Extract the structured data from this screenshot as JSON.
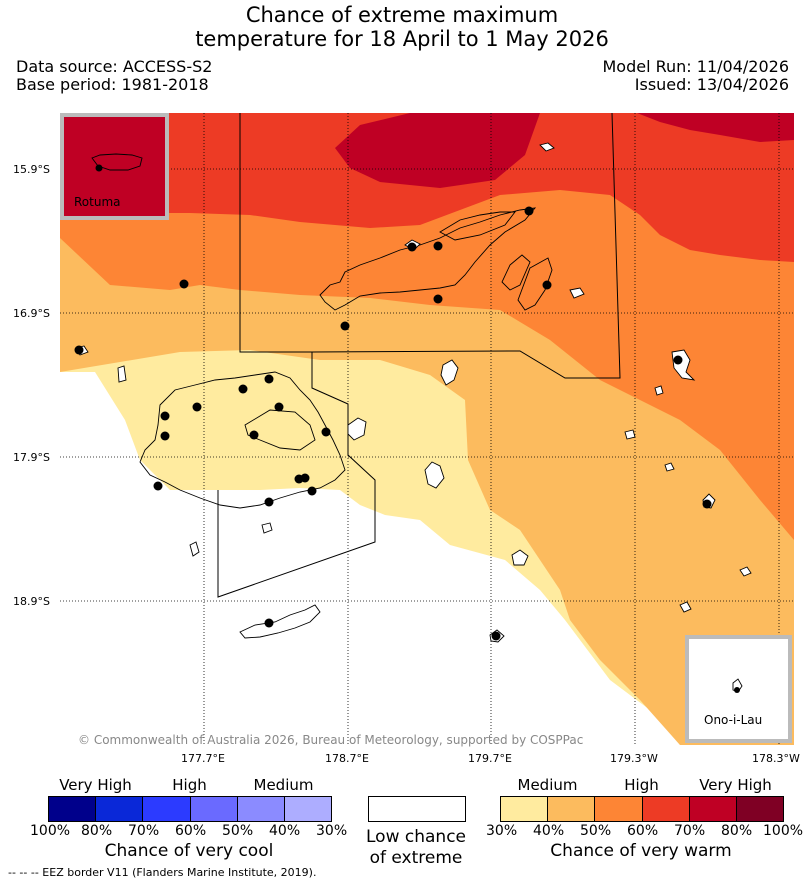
{
  "title": {
    "line1": "Chance of extreme maximum",
    "line2": "temperature for 18 April to 1 May 2026"
  },
  "info": {
    "data_source": "Data source: ACCESS-S2",
    "base_period": "Base period: 1981-2018",
    "model_run": "Model Run: 11/04/2026",
    "issued": "Issued: 13/04/2026"
  },
  "map": {
    "lat_labels": [
      "15.9°S",
      "16.9°S",
      "17.9°S",
      "18.9°S"
    ],
    "lon_labels": [
      "177.7°E",
      "178.7°E",
      "179.7°E",
      "179.3°W",
      "178.3°W"
    ],
    "inset_rotuma": "Rotuma",
    "inset_ono": "Ono-i-Lau",
    "copyright": "© Commonwealth of Australia 2026, Bureau of Meteorology, supported by COSPPac"
  },
  "legend": {
    "cool": {
      "headers": [
        "Very High",
        "High",
        "Medium"
      ],
      "ticks": [
        "100%",
        "80%",
        "70%",
        "60%",
        "50%",
        "40%",
        "30%"
      ],
      "caption": "Chance of very cool",
      "colors": [
        "#00008b",
        "#0a28d8",
        "#2c3bff",
        "#6a6aff",
        "#8b8bff",
        "#adadff"
      ]
    },
    "low": {
      "caption_line1": "Low chance",
      "caption_line2": "of extreme",
      "color": "#ffffff"
    },
    "warm": {
      "headers": [
        "Medium",
        "High",
        "Very High"
      ],
      "ticks": [
        "30%",
        "40%",
        "50%",
        "60%",
        "70%",
        "80%",
        "100%"
      ],
      "caption": "Chance of very warm",
      "colors": [
        "#ffeb9f",
        "#fcbb5e",
        "#fd8535",
        "#ed3b25",
        "#bf0024",
        "#7f0024"
      ]
    }
  },
  "footer": "-- -- -- EEZ border V11 (Flanders Marine Institute, 2019)."
}
